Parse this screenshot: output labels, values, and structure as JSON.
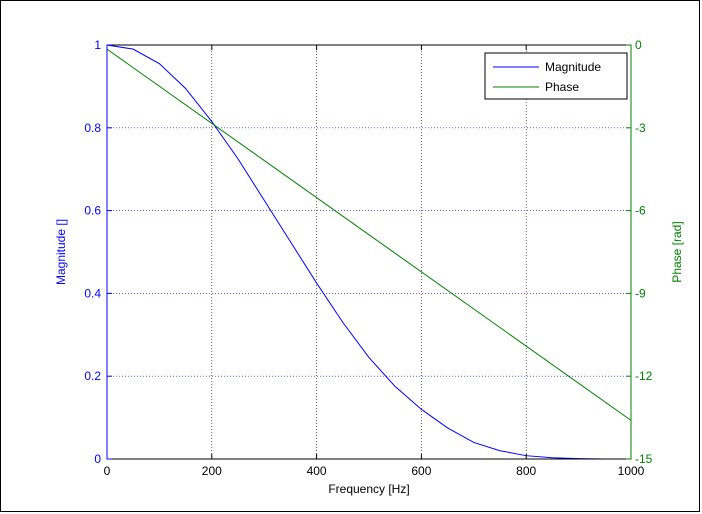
{
  "colors": {
    "magnitude": "#0000ff",
    "phase": "#008000",
    "axis": "#000000",
    "grid_v": "#000000",
    "grid_h": "#0000ff"
  },
  "chart_data": {
    "type": "line",
    "title": "",
    "xlabel": "Frequency [Hz]",
    "ylabel_left": "Magnitude []",
    "ylabel_right": "Phase [rad]",
    "xlim": [
      0,
      1000
    ],
    "ylim_left": [
      0,
      1
    ],
    "ylim_right": [
      -15,
      0
    ],
    "x_ticks": [
      "0",
      "200",
      "400",
      "600",
      "800",
      "1000"
    ],
    "y_left_ticks": [
      "0",
      "0.2",
      "0.4",
      "0.6",
      "0.8",
      "1"
    ],
    "y_right_ticks": [
      "0",
      "-3",
      "-6",
      "-9",
      "-12",
      "-15"
    ],
    "grid": true,
    "legend_position": "top-right",
    "series": [
      {
        "name": "Magnitude",
        "axis": "left",
        "x": [
          0,
          50,
          100,
          150,
          200,
          250,
          300,
          350,
          400,
          450,
          500,
          550,
          600,
          650,
          700,
          750,
          800,
          850,
          900,
          950,
          1000
        ],
        "values": [
          1.0,
          0.99,
          0.955,
          0.895,
          0.815,
          0.725,
          0.625,
          0.525,
          0.425,
          0.33,
          0.245,
          0.175,
          0.12,
          0.075,
          0.04,
          0.02,
          0.008,
          0.003,
          0.001,
          0.0,
          0.0
        ]
      },
      {
        "name": "Phase",
        "axis": "right",
        "x": [
          0,
          1000
        ],
        "values": [
          -0.15,
          -13.6
        ]
      }
    ]
  }
}
